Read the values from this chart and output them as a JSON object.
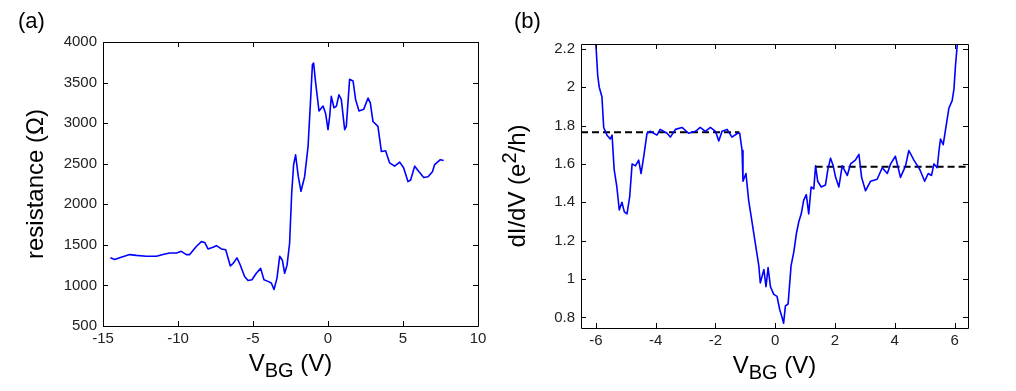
{
  "chart_data": [
    {
      "type": "line",
      "title": "(a)",
      "xlabel": "V$_{BG}$ (V)",
      "ylabel": "resistance (Ω)",
      "xlim": [
        -15,
        10
      ],
      "ylim": [
        500,
        4000
      ],
      "xticks": [
        -15,
        -10,
        -5,
        0,
        5,
        10
      ],
      "yticks": [
        500,
        1000,
        1500,
        2000,
        2500,
        3000,
        3500,
        4000
      ],
      "series": [
        {
          "color": "#0000ff",
          "x": [
            -14.51,
            -14.22,
            -13.89,
            -13.22,
            -12.78,
            -12.11,
            -11.44,
            -11.0,
            -10.56,
            -10.1,
            -9.78,
            -9.44,
            -9.22,
            -8.78,
            -8.44,
            -8.22,
            -8.0,
            -7.67,
            -7.44,
            -7.11,
            -6.82,
            -6.51,
            -6.33,
            -6.07,
            -5.89,
            -5.56,
            -5.33,
            -5.07,
            -4.78,
            -4.49,
            -4.27,
            -4.0,
            -3.78,
            -3.6,
            -3.4,
            -3.22,
            -3.04,
            -2.89,
            -2.73,
            -2.56,
            -2.42,
            -2.29,
            -2.16,
            -1.98,
            -1.8,
            -1.56,
            -1.33,
            -1.16,
            -1.04,
            -0.96,
            -0.82,
            -0.6,
            -0.33,
            -0.16,
            0.0,
            0.11,
            0.22,
            0.4,
            0.56,
            0.73,
            0.89,
            1.11,
            1.22,
            1.44,
            1.67,
            1.84,
            2.07,
            2.38,
            2.67,
            2.82,
            3.0,
            3.33,
            3.56,
            3.84,
            4.11,
            4.44,
            4.78,
            5.04,
            5.33,
            5.51,
            5.78,
            6.07,
            6.38,
            6.67,
            6.96,
            7.11,
            7.49,
            7.71
          ],
          "values": [
            1340,
            1320,
            1340,
            1380,
            1370,
            1360,
            1360,
            1380,
            1400,
            1400,
            1420,
            1380,
            1380,
            1480,
            1540,
            1530,
            1450,
            1470,
            1490,
            1450,
            1440,
            1240,
            1270,
            1340,
            1270,
            1110,
            1060,
            1070,
            1150,
            1210,
            1070,
            1050,
            1030,
            950,
            1090,
            1360,
            1310,
            1150,
            1250,
            1520,
            2140,
            2490,
            2610,
            2340,
            2160,
            2340,
            2710,
            3290,
            3720,
            3740,
            3490,
            3150,
            3210,
            3120,
            2920,
            3080,
            3330,
            3190,
            3210,
            3350,
            3290,
            2920,
            2960,
            3540,
            3520,
            3290,
            3150,
            3170,
            3310,
            3250,
            3020,
            2960,
            2650,
            2660,
            2510,
            2470,
            2520,
            2450,
            2280,
            2300,
            2470,
            2400,
            2330,
            2340,
            2400,
            2490,
            2550,
            2540
          ]
        }
      ]
    },
    {
      "type": "line",
      "title": "(b)",
      "xlabel": "V$_{BG}$ (V)",
      "ylabel": "dI/dV (e$^{2}$/h)",
      "xlim": [
        -6.5,
        6.45
      ],
      "ylim": [
        0.745,
        2.225
      ],
      "xticks": [
        -6,
        -4,
        -2,
        0,
        2,
        4,
        6
      ],
      "yticks": [
        0.8,
        1,
        1.2,
        1.4,
        1.6,
        1.8,
        2,
        2.2
      ],
      "series": [
        {
          "color": "#0000ff",
          "x": [
            -6.0,
            -5.94,
            -5.89,
            -5.8,
            -5.74,
            -5.63,
            -5.52,
            -5.46,
            -5.39,
            -5.3,
            -5.22,
            -5.13,
            -5.05,
            -4.96,
            -4.87,
            -4.79,
            -4.68,
            -4.57,
            -4.49,
            -4.4,
            -4.29,
            -4.18,
            -3.96,
            -3.85,
            -3.62,
            -3.51,
            -3.34,
            -3.12,
            -2.9,
            -2.67,
            -2.51,
            -2.34,
            -2.17,
            -2.0,
            -1.89,
            -1.78,
            -1.61,
            -1.45,
            -1.26,
            -1.19,
            -1.11,
            -1.08,
            -0.98,
            -0.89,
            -0.81,
            -0.72,
            -0.63,
            -0.55,
            -0.5,
            -0.38,
            -0.31,
            -0.24,
            -0.16,
            -0.05,
            0.06,
            0.15,
            0.23,
            0.28,
            0.34,
            0.43,
            0.53,
            0.62,
            0.71,
            0.79,
            0.87,
            0.95,
            1.04,
            1.12,
            1.2,
            1.29,
            1.35,
            1.42,
            1.54,
            1.68,
            1.76,
            1.85,
            1.94,
            2.02,
            2.13,
            2.24,
            2.41,
            2.52,
            2.68,
            2.8,
            2.89,
            3.02,
            3.19,
            3.41,
            3.58,
            3.75,
            3.86,
            4.02,
            4.19,
            4.36,
            4.47,
            4.64,
            4.84,
            5.0,
            5.12,
            5.23,
            5.31,
            5.42,
            5.48,
            5.53,
            5.62,
            5.73,
            5.81,
            5.92,
            5.98,
            6.03,
            6.09
          ],
          "values": [
            2.22,
            2.06,
            2.0,
            1.95,
            1.79,
            1.75,
            1.73,
            1.75,
            1.57,
            1.48,
            1.36,
            1.4,
            1.35,
            1.34,
            1.43,
            1.6,
            1.59,
            1.62,
            1.55,
            1.64,
            1.76,
            1.77,
            1.75,
            1.78,
            1.76,
            1.74,
            1.78,
            1.79,
            1.76,
            1.77,
            1.79,
            1.77,
            1.79,
            1.77,
            1.72,
            1.77,
            1.78,
            1.74,
            1.76,
            1.76,
            1.67,
            1.51,
            1.55,
            1.41,
            1.33,
            1.24,
            1.15,
            1.07,
            0.98,
            1.05,
            0.96,
            1.06,
            0.96,
            0.92,
            0.91,
            0.84,
            0.8,
            0.77,
            0.86,
            0.87,
            1.07,
            1.14,
            1.24,
            1.3,
            1.34,
            1.41,
            1.44,
            1.34,
            1.48,
            1.47,
            1.59,
            1.51,
            1.48,
            1.49,
            1.57,
            1.63,
            1.59,
            1.53,
            1.48,
            1.59,
            1.54,
            1.6,
            1.62,
            1.65,
            1.53,
            1.46,
            1.51,
            1.52,
            1.58,
            1.55,
            1.6,
            1.64,
            1.53,
            1.59,
            1.67,
            1.62,
            1.57,
            1.51,
            1.55,
            1.54,
            1.6,
            1.58,
            1.67,
            1.73,
            1.7,
            1.81,
            1.89,
            1.93,
            1.99,
            2.11,
            2.22
          ]
        },
        {
          "color": "#000000",
          "line_style": "dashed",
          "x": [
            -6.5,
            -1.2
          ],
          "values": [
            1.765,
            1.765
          ]
        },
        {
          "color": "#000000",
          "line_style": "dashed",
          "x": [
            1.35,
            6.45
          ],
          "values": [
            1.585,
            1.585
          ]
        }
      ]
    }
  ]
}
